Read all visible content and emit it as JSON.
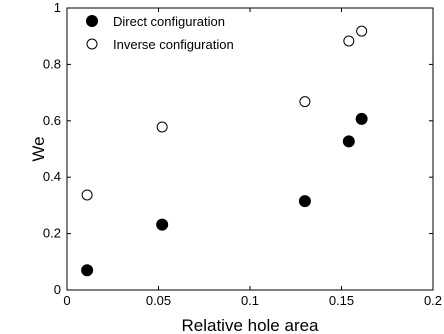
{
  "chart_data": {
    "type": "scatter",
    "title": "",
    "xlabel": "Relative hole area",
    "ylabel": "We",
    "xlim": [
      0,
      0.2
    ],
    "ylim": [
      0,
      1
    ],
    "xticks": [
      0,
      0.05,
      0.1,
      0.15,
      0.2
    ],
    "xtick_labels": [
      "0",
      "0.05",
      "0.1",
      "0.15",
      "0.2"
    ],
    "yticks": [
      0,
      0.2,
      0.4,
      0.6,
      0.8,
      1
    ],
    "ytick_labels": [
      "0",
      "0.2",
      "0.4",
      "0.6",
      "0.8",
      "1"
    ],
    "grid": false,
    "legend_position": "top-left",
    "series": [
      {
        "name": "Direct configuration",
        "marker": "filled-circle",
        "color": "#000000",
        "x": [
          0.011,
          0.052,
          0.13,
          0.154,
          0.161
        ],
        "y": [
          0.07,
          0.232,
          0.315,
          0.527,
          0.607
        ]
      },
      {
        "name": "Inverse configuration",
        "marker": "open-circle",
        "color": "#000000",
        "x": [
          0.011,
          0.052,
          0.13,
          0.154,
          0.161
        ],
        "y": [
          0.337,
          0.578,
          0.668,
          0.883,
          0.918
        ]
      }
    ]
  }
}
